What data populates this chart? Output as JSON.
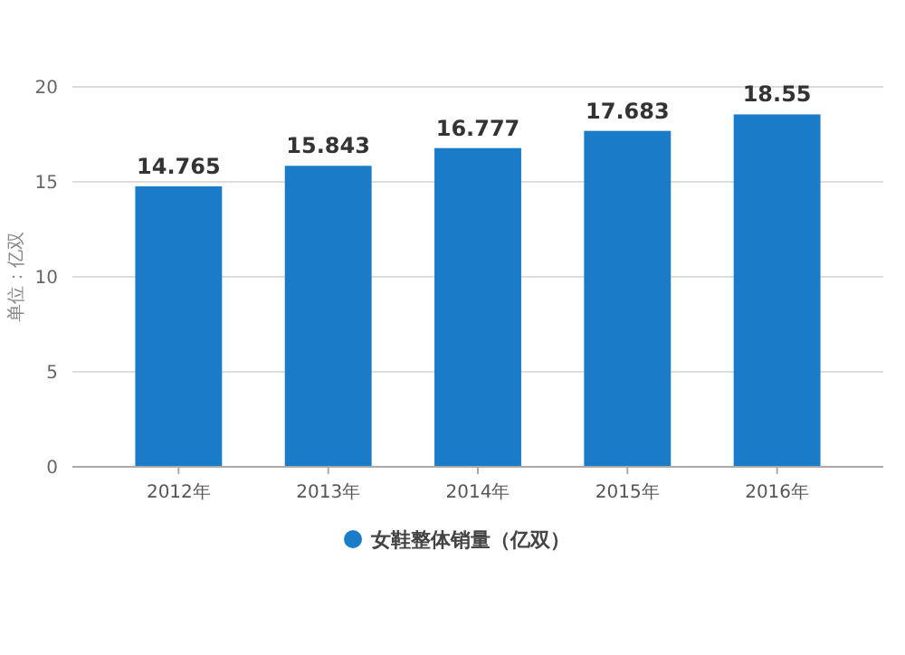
{
  "chart_data": {
    "type": "bar",
    "ylabel": "单位：亿双",
    "categories": [
      "2012年",
      "2013年",
      "2014年",
      "2015年",
      "2016年"
    ],
    "series": [
      {
        "name": "女鞋整体销量（亿双）",
        "color": "#1a7bc9",
        "values": [
          14.765,
          15.843,
          16.777,
          17.683,
          18.55
        ]
      }
    ],
    "ylim": [
      0,
      20
    ],
    "yticks": [
      0,
      5,
      10,
      15,
      20
    ],
    "grid": "y",
    "legend": "bottom",
    "data_labels": true
  }
}
